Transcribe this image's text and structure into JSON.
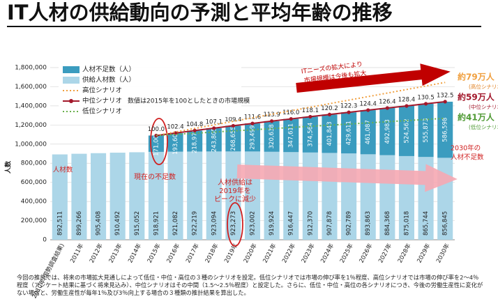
{
  "chart_data": {
    "type": "bar",
    "stacked": true,
    "title": "IT人材の供給動向の予測と平均年齢の推移",
    "ylabel": "人数",
    "categories": [
      "2010年(国勢調査結果)",
      "2011年",
      "2012年",
      "2013年",
      "2014年",
      "2015年",
      "2016年",
      "2017年",
      "2018年",
      "2019年",
      "2020年",
      "2021年",
      "2022年",
      "2023年",
      "2024年",
      "2025年",
      "2026年",
      "2027年",
      "2028年",
      "2029年",
      "2030年"
    ],
    "ylim": [
      0,
      1800000
    ],
    "yticks": [
      0,
      {
        "value": 200000,
        "label": "200,000"
      },
      {
        "value": 400000,
        "label": "400,000"
      },
      {
        "value": 600000,
        "label": "600,000"
      },
      {
        "value": 800000,
        "label": "800,000"
      },
      {
        "value": 1000000,
        "label": "1,000,000"
      },
      {
        "value": 1200000,
        "label": "1,200,000"
      },
      {
        "value": 1400000,
        "label": "1,400,000"
      },
      {
        "value": 1600000,
        "label": "1,600,000"
      },
      {
        "value": 1800000,
        "label": "1,800,000"
      }
    ],
    "y2lim": [
      0,
      165.2
    ],
    "series": [
      {
        "name": "供給人材数（人）",
        "type": "bar",
        "color": "#acd6e8",
        "values": [
          892511,
          899266,
          905408,
          910492,
          915052,
          918921,
          921082,
          922219,
          923094,
          923273,
          923002,
          919924,
          916447,
          912370,
          907878,
          902789,
          893863,
          884368,
          875018,
          865744,
          856845
        ],
        "value_labels": [
          "892,511",
          "899,266",
          "905,408",
          "910,492",
          "915,052",
          "918,921",
          "921,082",
          "922,219",
          "923,094",
          "923,273",
          "923,002",
          "919,924",
          "916,447",
          "912,370",
          "907,878",
          "902,789",
          "893,863",
          "884,368",
          "875,018",
          "865,744",
          "856,845"
        ]
      },
      {
        "name": "人材不足数（人）",
        "type": "bar",
        "color": "#3b9cbf",
        "values": [
          null,
          null,
          null,
          null,
          null,
          171000,
          193608,
          218976,
          243805,
          268655,
          293499,
          320638,
          347611,
          374564,
          401843,
          429611,
          461087,
          492983,
          524562,
          555873,
          586598
        ],
        "value_labels": [
          null,
          null,
          null,
          null,
          null,
          "171,000",
          "193,608",
          "218,976",
          "243,805",
          "268,655",
          "293,499",
          "320,638",
          "347,611",
          "374,564",
          "401,843",
          "429,611",
          "461,087",
          "492,983",
          "524,562",
          "555,873",
          "586,598"
        ]
      },
      {
        "name": "中位シナリオ",
        "type": "line",
        "axis": "y2",
        "color": "#a3182b",
        "values": [
          null,
          null,
          null,
          null,
          null,
          100,
          102.4,
          104.8,
          107.1,
          109.4,
          111.6,
          113.9,
          116,
          118.1,
          120.2,
          122.3,
          124.4,
          126.4,
          128.4,
          130.5,
          132.5
        ],
        "value_labels": [
          null,
          null,
          null,
          null,
          null,
          "100.0",
          "102.4",
          "104.8",
          "107.1",
          "109.4",
          "111.6",
          "113.9",
          "116.0",
          "118.1",
          "120.2",
          "122.3",
          "124.4",
          "126.4",
          "128.4",
          "130.5",
          "132.5"
        ]
      },
      {
        "name": "高位シナリオ",
        "type": "dotted",
        "color": "#f0a040",
        "x": [
          "2015年",
          "2030年"
        ],
        "values": [
          1090000,
          1645000
        ]
      },
      {
        "name": "低位シナリオ",
        "type": "dotted",
        "color": "#6ab04c",
        "x": [
          "2015年",
          "2030年"
        ],
        "values": [
          1090000,
          1270000
        ]
      }
    ],
    "legend_note": "数値は2015年を100としたときの市場規模",
    "annotations": [
      "ITニーズの拡大により",
      "市場規模は今後も拡大",
      "約79万人",
      "(高位シナリオ)",
      "約59万人",
      "(中位シナリオ)",
      "約41万人",
      "(低位シナリオ)",
      "2030年の",
      "人材不足数",
      "現在の不足数",
      "人材供給は",
      "2019年を",
      "ピークに減少",
      "人材数"
    ],
    "footnote": "今回の推計では、将来の市場拡大見通しによって低位・中位・高位の３種のシナリオを設定。低位シナリオでは市場の伸び率を1％程度、高位シナリオでは市場の伸び率を2～4％程度（アンケート結果に基づく将来見込み）、中位シナリオはその中間（1.5～2.5％程度）と設定した。さらに、低位・中位・高位の各シナリオにつき、今後の労働生産性に変化がない場合と、労働生産性が毎年1％及び3％向上する場合の３種類の推計結果を算出した。"
  }
}
